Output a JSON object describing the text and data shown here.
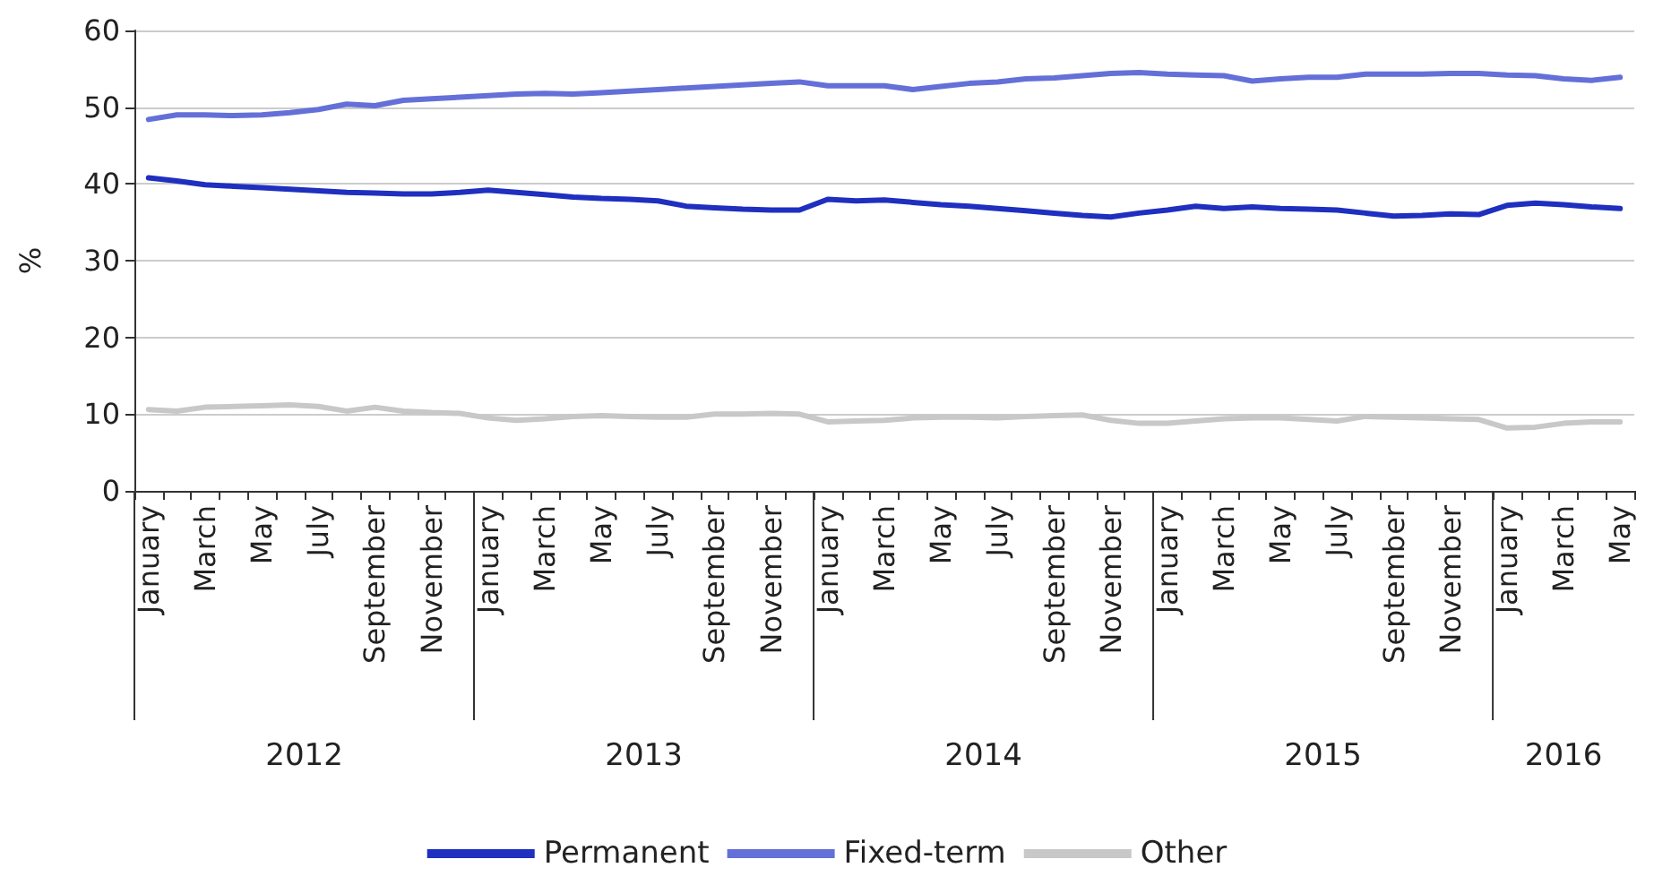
{
  "chart_data": {
    "type": "line",
    "ylabel": "%",
    "categories": [
      "January",
      null,
      "March",
      null,
      "May",
      null,
      "July",
      null,
      "September",
      null,
      "November",
      null,
      "January",
      null,
      "March",
      null,
      "May",
      null,
      "July",
      null,
      "September",
      null,
      "November",
      null,
      "January",
      null,
      "March",
      null,
      "May",
      null,
      "July",
      null,
      "September",
      null,
      "November",
      null,
      "January",
      null,
      "March",
      null,
      "May",
      null,
      "July",
      null,
      "September",
      null,
      "November",
      null,
      "January",
      null,
      "March",
      null,
      "May"
    ],
    "series": [
      {
        "name": "Permanent",
        "color": "#1f2fbf",
        "values": [
          40.8,
          40.4,
          39.9,
          39.7,
          39.5,
          39.3,
          39.1,
          38.9,
          38.8,
          38.7,
          38.7,
          38.9,
          39.2,
          38.9,
          38.6,
          38.3,
          38.1,
          38.0,
          37.8,
          37.1,
          36.9,
          36.7,
          36.6,
          36.6,
          38.0,
          37.8,
          37.9,
          37.6,
          37.3,
          37.1,
          36.8,
          36.5,
          36.2,
          35.9,
          35.7,
          36.2,
          36.6,
          37.1,
          36.8,
          37.0,
          36.8,
          36.7,
          36.6,
          36.2,
          35.8,
          35.9,
          36.1,
          36.0,
          37.2,
          37.5,
          37.3,
          37.0,
          36.8
        ]
      },
      {
        "name": "Fixed-term",
        "color": "#6470d8",
        "values": [
          48.4,
          49.0,
          49.0,
          48.9,
          49.0,
          49.3,
          49.7,
          50.4,
          50.2,
          50.9,
          51.1,
          51.3,
          51.5,
          51.7,
          51.8,
          51.7,
          51.9,
          52.1,
          52.3,
          52.5,
          52.7,
          52.9,
          53.1,
          53.3,
          52.8,
          52.8,
          52.8,
          52.3,
          52.7,
          53.1,
          53.3,
          53.7,
          53.8,
          54.1,
          54.4,
          54.5,
          54.3,
          54.2,
          54.1,
          53.4,
          53.7,
          53.9,
          53.9,
          54.3,
          54.3,
          54.3,
          54.4,
          54.4,
          54.2,
          54.1,
          53.7,
          53.5,
          53.9
        ]
      },
      {
        "name": "Other",
        "color": "#c8c8c8",
        "values": [
          10.6,
          10.4,
          10.9,
          11.0,
          11.1,
          11.2,
          11.0,
          10.4,
          10.9,
          10.4,
          10.2,
          10.1,
          9.5,
          9.2,
          9.4,
          9.7,
          9.8,
          9.7,
          9.6,
          9.6,
          10.0,
          10.0,
          10.1,
          10.0,
          9.0,
          9.1,
          9.2,
          9.5,
          9.6,
          9.6,
          9.5,
          9.7,
          9.8,
          9.9,
          9.2,
          8.8,
          8.8,
          9.1,
          9.4,
          9.5,
          9.5,
          9.3,
          9.1,
          9.7,
          9.6,
          9.5,
          9.4,
          9.3,
          8.2,
          8.3,
          8.8,
          9.0,
          9.0
        ]
      }
    ],
    "annotations": [
      "2012",
      "2013",
      "2014",
      "2015",
      "2016"
    ],
    "ylim": [
      0,
      60
    ],
    "yticks": [
      0,
      10,
      20,
      30,
      40,
      50,
      60
    ],
    "grid": "y",
    "legend": "bottom",
    "marker": "none",
    "line_style": "solid"
  }
}
